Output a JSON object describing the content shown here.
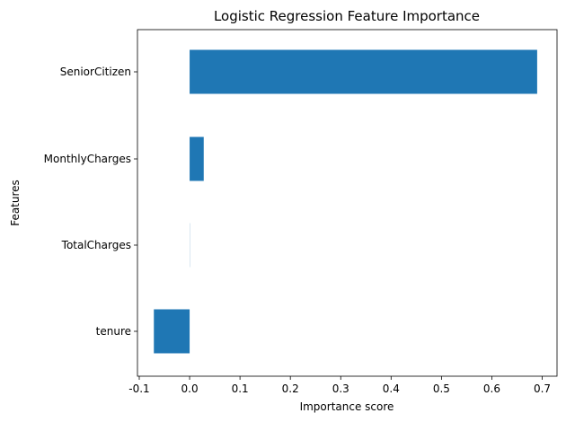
{
  "chart_data": {
    "type": "bar",
    "orientation": "horizontal",
    "title": "Logistic Regression Feature Importance",
    "xlabel": "Importance score",
    "ylabel": "Features",
    "categories": [
      "SeniorCitizen",
      "MonthlyCharges",
      "TotalCharges",
      "tenure"
    ],
    "values": [
      0.69,
      0.028,
      0.0003,
      -0.071
    ],
    "xlim": [
      -0.1,
      0.7
    ],
    "xticks": [
      "-0.1",
      "0.0",
      "0.1",
      "0.2",
      "0.3",
      "0.4",
      "0.5",
      "0.6",
      "0.7"
    ],
    "grid": false,
    "bar_color": "#1f77b4"
  }
}
